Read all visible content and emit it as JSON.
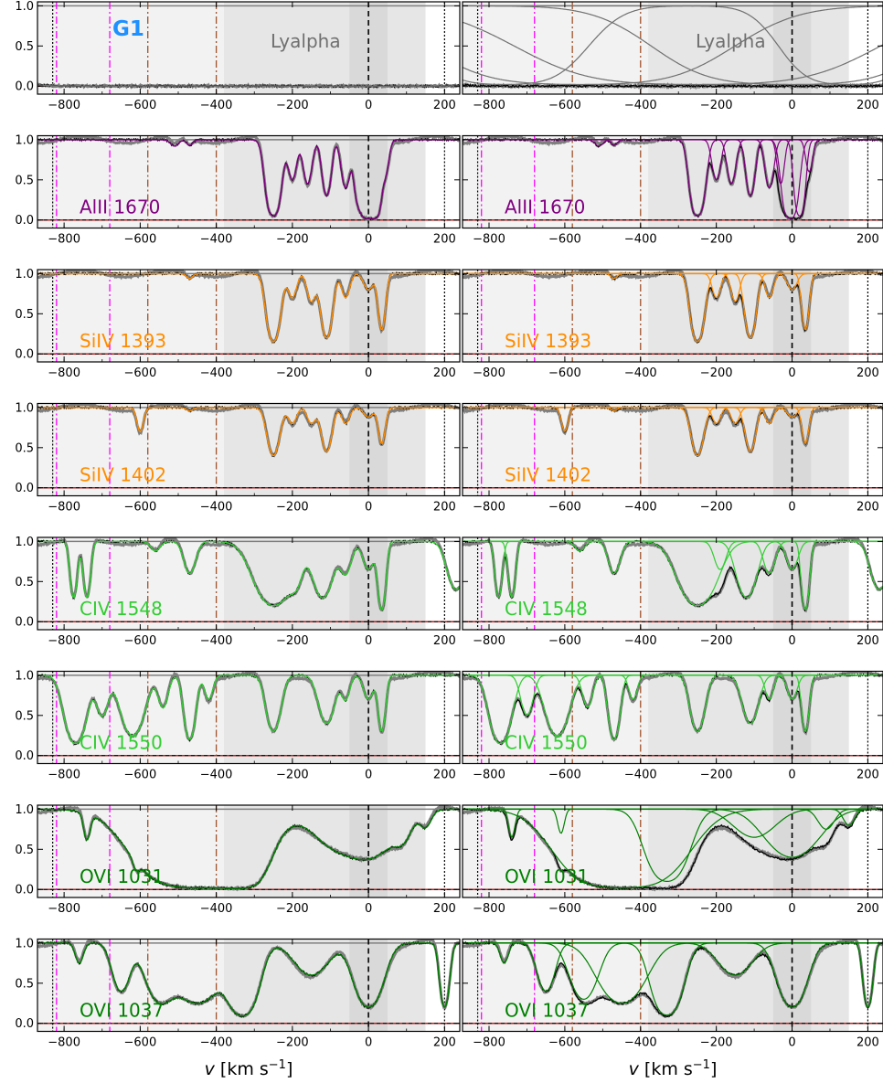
{
  "figure": {
    "xlabel_main": "v [km s",
    "xlabel_exp": "−1",
    "xlabel_close": "]",
    "group_label": "G1",
    "group_label_color": "#1e90ff"
  },
  "colors": {
    "data": "#000000",
    "data_grey": "#7f7f7f",
    "shade_light": "#f2f2f2",
    "shade_mid": "#e6e6e6",
    "shade_dark": "#d9d9d9",
    "magenta": "#ff00ff",
    "brown": "#a0522d",
    "zero_line": "#b22222",
    "continuum": "#808080"
  },
  "chart_data": {
    "type": "line",
    "xlim": [
      -870,
      240
    ],
    "ylim": [
      -0.1,
      1.05
    ],
    "x_ticks": [
      -800,
      -600,
      -400,
      -200,
      0,
      200
    ],
    "x_tick_labels": [
      "−800",
      "−600",
      "−400",
      "−200",
      "0",
      "200"
    ],
    "y_ticks": [
      0.0,
      0.5,
      1.0
    ],
    "y_tick_labels": [
      "0.0",
      "0.5",
      "1.0"
    ],
    "vlines": {
      "magenta_dashdot": [
        -820,
        -680
      ],
      "brown_dashdot": [
        -580,
        -400
      ],
      "black_dashed": [
        0
      ],
      "black_dotted": [
        -830,
        200
      ]
    },
    "shaded_regions": [
      {
        "x": [
          -870,
          -380
        ],
        "shade": "light"
      },
      {
        "x": [
          -380,
          150
        ],
        "shade": "mid"
      },
      {
        "x": [
          -50,
          50
        ],
        "shade": "dark"
      }
    ],
    "panels": [
      {
        "label": "Lyalpha",
        "label_color": "#707070",
        "model_color": "#707070",
        "lines": [
          {
            "v": -760,
            "depth": 1.0,
            "width": 120
          },
          {
            "v": -560,
            "depth": 1.0,
            "width": 220
          },
          {
            "v": -250,
            "depth": 1.0,
            "width": 260
          },
          {
            "v": 0,
            "depth": 1.0,
            "width": 200
          },
          {
            "v": 150,
            "depth": 0.98,
            "width": 100
          }
        ]
      },
      {
        "label": "AlII 1670",
        "label_color": "#800080",
        "model_color": "#800080",
        "lines": [
          {
            "v": -510,
            "depth": 0.08,
            "width": 10
          },
          {
            "v": -470,
            "depth": 0.07,
            "width": 8
          },
          {
            "v": -250,
            "depth": 0.95,
            "width": 14
          },
          {
            "v": -200,
            "depth": 0.5,
            "width": 10
          },
          {
            "v": -160,
            "depth": 0.55,
            "width": 10
          },
          {
            "v": -110,
            "depth": 0.7,
            "width": 10
          },
          {
            "v": -60,
            "depth": 0.6,
            "width": 10
          },
          {
            "v": -30,
            "depth": 0.55,
            "width": 8
          },
          {
            "v": -5,
            "depth": 0.98,
            "width": 14
          },
          {
            "v": 20,
            "depth": 0.95,
            "width": 10
          },
          {
            "v": 45,
            "depth": 0.4,
            "width": 8
          }
        ]
      },
      {
        "label": "SiIV 1393",
        "label_color": "#ff8c00",
        "model_color": "#ff8c00",
        "lines": [
          {
            "v": -470,
            "depth": 0.06,
            "width": 8
          },
          {
            "v": -250,
            "depth": 0.85,
            "width": 14
          },
          {
            "v": -200,
            "depth": 0.3,
            "width": 10
          },
          {
            "v": -150,
            "depth": 0.35,
            "width": 10
          },
          {
            "v": -110,
            "depth": 0.8,
            "width": 12
          },
          {
            "v": -60,
            "depth": 0.3,
            "width": 10
          },
          {
            "v": 0,
            "depth": 0.2,
            "width": 12
          },
          {
            "v": 35,
            "depth": 0.7,
            "width": 8
          }
        ]
      },
      {
        "label": "SiIV 1402",
        "label_color": "#ff8c00",
        "model_color": "#ff8c00",
        "lines": [
          {
            "v": -600,
            "depth": 0.3,
            "width": 8
          },
          {
            "v": -470,
            "depth": 0.04,
            "width": 8
          },
          {
            "v": -250,
            "depth": 0.6,
            "width": 14
          },
          {
            "v": -200,
            "depth": 0.2,
            "width": 10
          },
          {
            "v": -150,
            "depth": 0.2,
            "width": 10
          },
          {
            "v": -110,
            "depth": 0.55,
            "width": 12
          },
          {
            "v": -60,
            "depth": 0.2,
            "width": 10
          },
          {
            "v": 0,
            "depth": 0.12,
            "width": 12
          },
          {
            "v": 35,
            "depth": 0.45,
            "width": 8
          }
        ]
      },
      {
        "label": "CIV 1548",
        "label_color": "#32cd32",
        "model_color": "#32cd32",
        "lines": [
          {
            "v": -775,
            "depth": 0.7,
            "width": 8
          },
          {
            "v": -740,
            "depth": 0.7,
            "width": 8
          },
          {
            "v": -560,
            "depth": 0.12,
            "width": 12
          },
          {
            "v": -470,
            "depth": 0.4,
            "width": 14
          },
          {
            "v": -250,
            "depth": 0.8,
            "width": 40
          },
          {
            "v": -190,
            "depth": 0.35,
            "width": 14
          },
          {
            "v": -120,
            "depth": 0.7,
            "width": 22
          },
          {
            "v": -60,
            "depth": 0.4,
            "width": 14
          },
          {
            "v": 0,
            "depth": 0.35,
            "width": 14
          },
          {
            "v": 35,
            "depth": 0.85,
            "width": 8
          },
          {
            "v": 230,
            "depth": 0.6,
            "width": 20
          }
        ]
      },
      {
        "label": "CIV 1550",
        "label_color": "#32cd32",
        "model_color": "#32cd32",
        "lines": [
          {
            "v": -770,
            "depth": 0.85,
            "width": 22
          },
          {
            "v": -700,
            "depth": 0.5,
            "width": 14
          },
          {
            "v": -620,
            "depth": 0.75,
            "width": 25
          },
          {
            "v": -540,
            "depth": 0.4,
            "width": 12
          },
          {
            "v": -470,
            "depth": 0.8,
            "width": 12
          },
          {
            "v": -420,
            "depth": 0.3,
            "width": 10
          },
          {
            "v": -250,
            "depth": 0.7,
            "width": 16
          },
          {
            "v": -110,
            "depth": 0.6,
            "width": 18
          },
          {
            "v": -60,
            "depth": 0.3,
            "width": 10
          },
          {
            "v": 0,
            "depth": 0.3,
            "width": 12
          },
          {
            "v": 35,
            "depth": 0.7,
            "width": 8
          }
        ]
      },
      {
        "label": "OVI 1031",
        "label_color": "#008000",
        "model_color": "#008000",
        "lines": [
          {
            "v": -740,
            "depth": 0.35,
            "width": 8
          },
          {
            "v": -610,
            "depth": 0.3,
            "width": 8
          },
          {
            "v": -450,
            "depth": 0.98,
            "width": 100
          },
          {
            "v": -330,
            "depth": 0.9,
            "width": 40
          },
          {
            "v": -100,
            "depth": 0.35,
            "width": 50
          },
          {
            "v": 0,
            "depth": 0.6,
            "width": 60
          },
          {
            "v": 90,
            "depth": 0.25,
            "width": 20
          },
          {
            "v": 150,
            "depth": 0.2,
            "width": 14
          }
        ]
      },
      {
        "label": "OVI 1037",
        "label_color": "#008000",
        "model_color": "#008000",
        "lines": [
          {
            "v": -760,
            "depth": 0.25,
            "width": 10
          },
          {
            "v": -650,
            "depth": 0.6,
            "width": 20
          },
          {
            "v": -550,
            "depth": 0.7,
            "width": 30
          },
          {
            "v": -450,
            "depth": 0.75,
            "width": 50
          },
          {
            "v": -330,
            "depth": 0.9,
            "width": 30
          },
          {
            "v": -150,
            "depth": 0.4,
            "width": 40
          },
          {
            "v": 0,
            "depth": 0.8,
            "width": 30
          },
          {
            "v": 200,
            "depth": 0.8,
            "width": 10
          }
        ]
      }
    ]
  }
}
